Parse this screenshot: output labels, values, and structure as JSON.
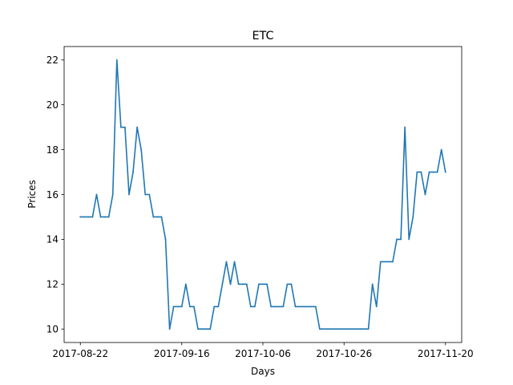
{
  "chart_data": {
    "type": "line",
    "title": "ETC",
    "xlabel": "Days",
    "ylabel": "Prices",
    "x_start": "2017-08-22",
    "x_end": "2017-11-20",
    "xlim": [
      "2017-08-18",
      "2017-11-24"
    ],
    "ylim": [
      9.4,
      22.6
    ],
    "xticks": [
      "2017-08-22",
      "2017-09-16",
      "2017-10-06",
      "2017-10-26",
      "2017-11-20"
    ],
    "yticks": [
      10,
      12,
      14,
      16,
      18,
      20,
      22
    ],
    "grid": false,
    "line_color": "#1f77b4",
    "series": [
      {
        "points": [
          [
            "2017-08-22",
            15
          ],
          [
            "2017-08-23",
            15
          ],
          [
            "2017-08-24",
            15
          ],
          [
            "2017-08-25",
            15
          ],
          [
            "2017-08-26",
            16
          ],
          [
            "2017-08-27",
            15
          ],
          [
            "2017-08-28",
            15
          ],
          [
            "2017-08-29",
            15
          ],
          [
            "2017-08-30",
            16
          ],
          [
            "2017-08-31",
            22
          ],
          [
            "2017-09-01",
            19
          ],
          [
            "2017-09-02",
            19
          ],
          [
            "2017-09-03",
            16
          ],
          [
            "2017-09-04",
            17
          ],
          [
            "2017-09-05",
            19
          ],
          [
            "2017-09-06",
            18
          ],
          [
            "2017-09-07",
            16
          ],
          [
            "2017-09-08",
            16
          ],
          [
            "2017-09-09",
            15
          ],
          [
            "2017-09-10",
            15
          ],
          [
            "2017-09-11",
            15
          ],
          [
            "2017-09-12",
            14
          ],
          [
            "2017-09-13",
            10
          ],
          [
            "2017-09-14",
            11
          ],
          [
            "2017-09-15",
            11
          ],
          [
            "2017-09-16",
            11
          ],
          [
            "2017-09-17",
            12
          ],
          [
            "2017-09-18",
            11
          ],
          [
            "2017-09-19",
            11
          ],
          [
            "2017-09-20",
            10
          ],
          [
            "2017-09-21",
            10
          ],
          [
            "2017-09-22",
            10
          ],
          [
            "2017-09-23",
            10
          ],
          [
            "2017-09-24",
            11
          ],
          [
            "2017-09-25",
            11
          ],
          [
            "2017-09-26",
            12
          ],
          [
            "2017-09-27",
            13
          ],
          [
            "2017-09-28",
            12
          ],
          [
            "2017-09-29",
            13
          ],
          [
            "2017-09-30",
            12
          ],
          [
            "2017-10-01",
            12
          ],
          [
            "2017-10-02",
            12
          ],
          [
            "2017-10-03",
            11
          ],
          [
            "2017-10-04",
            11
          ],
          [
            "2017-10-05",
            12
          ],
          [
            "2017-10-06",
            12
          ],
          [
            "2017-10-07",
            12
          ],
          [
            "2017-10-08",
            11
          ],
          [
            "2017-10-09",
            11
          ],
          [
            "2017-10-10",
            11
          ],
          [
            "2017-10-11",
            11
          ],
          [
            "2017-10-12",
            12
          ],
          [
            "2017-10-13",
            12
          ],
          [
            "2017-10-14",
            11
          ],
          [
            "2017-10-15",
            11
          ],
          [
            "2017-10-16",
            11
          ],
          [
            "2017-10-17",
            11
          ],
          [
            "2017-10-18",
            11
          ],
          [
            "2017-10-19",
            11
          ],
          [
            "2017-10-20",
            10
          ],
          [
            "2017-10-21",
            10
          ],
          [
            "2017-10-22",
            10
          ],
          [
            "2017-10-23",
            10
          ],
          [
            "2017-10-24",
            10
          ],
          [
            "2017-10-25",
            10
          ],
          [
            "2017-10-26",
            10
          ],
          [
            "2017-10-27",
            10
          ],
          [
            "2017-10-28",
            10
          ],
          [
            "2017-10-29",
            10
          ],
          [
            "2017-10-30",
            10
          ],
          [
            "2017-10-31",
            10
          ],
          [
            "2017-11-01",
            10
          ],
          [
            "2017-11-02",
            12
          ],
          [
            "2017-11-03",
            11
          ],
          [
            "2017-11-04",
            13
          ],
          [
            "2017-11-05",
            13
          ],
          [
            "2017-11-06",
            13
          ],
          [
            "2017-11-07",
            13
          ],
          [
            "2017-11-08",
            14
          ],
          [
            "2017-11-09",
            14
          ],
          [
            "2017-11-10",
            19
          ],
          [
            "2017-11-11",
            14
          ],
          [
            "2017-11-12",
            15
          ],
          [
            "2017-11-13",
            17
          ],
          [
            "2017-11-14",
            17
          ],
          [
            "2017-11-15",
            16
          ],
          [
            "2017-11-16",
            17
          ],
          [
            "2017-11-17",
            17
          ],
          [
            "2017-11-18",
            17
          ],
          [
            "2017-11-19",
            18
          ],
          [
            "2017-11-20",
            17
          ]
        ]
      }
    ]
  }
}
